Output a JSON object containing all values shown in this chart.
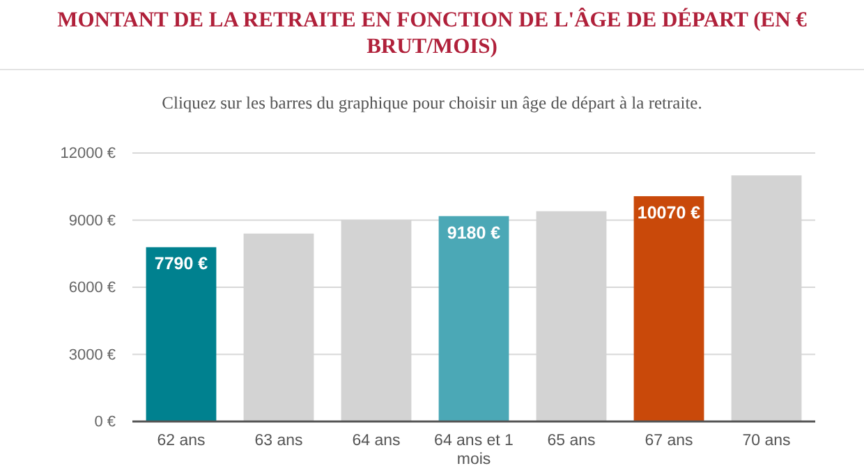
{
  "chart_data": {
    "type": "bar",
    "title": "MONTANT DE LA RETRAITE EN FONCTION DE L'ÂGE DE DÉPART (EN € BRUT/MOIS)",
    "subtitle": "Cliquez sur les barres du graphique pour choisir un âge de départ à la retraite.",
    "categories": [
      "62 ans",
      "63 ans",
      "64 ans",
      "64 ans et 1 mois",
      "65 ans",
      "67 ans",
      "70 ans"
    ],
    "values": [
      7790,
      8400,
      9000,
      9180,
      9400,
      10070,
      11000
    ],
    "value_labels": [
      "7790 €",
      null,
      null,
      "9180 €",
      null,
      "10070 €",
      null
    ],
    "colors": [
      "#00818f",
      "#d3d3d3",
      "#d3d3d3",
      "#4ba8b6",
      "#d3d3d3",
      "#c9490a",
      "#d3d3d3"
    ],
    "ylim": [
      0,
      12000
    ],
    "yticks": [
      {
        "value": 0,
        "label": "0 €"
      },
      {
        "value": 3000,
        "label": "3000 €"
      },
      {
        "value": 6000,
        "label": "6000 €"
      },
      {
        "value": 9000,
        "label": "9000 €"
      },
      {
        "value": 12000,
        "label": "12000 €"
      }
    ],
    "grid": "y"
  }
}
